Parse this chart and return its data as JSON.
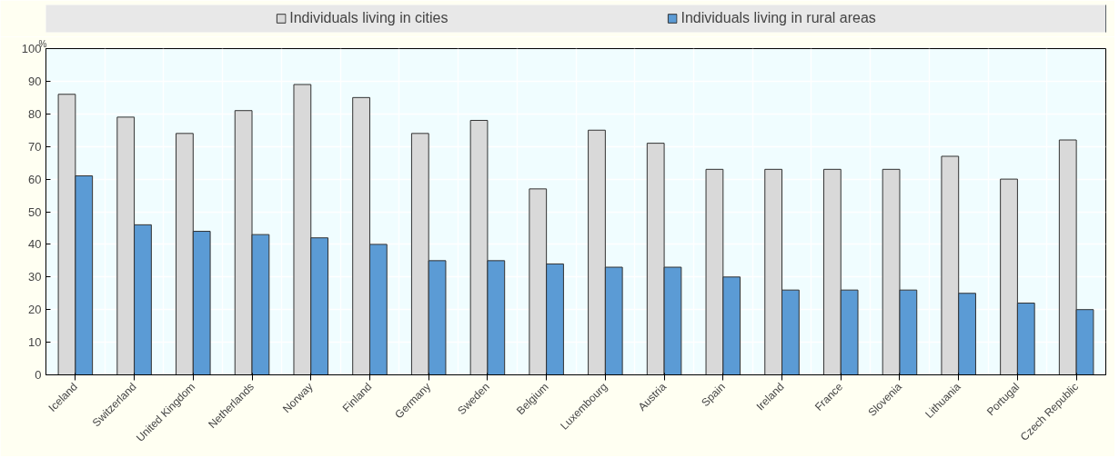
{
  "chart_data": {
    "type": "bar",
    "ylabel": "%",
    "categories": [
      "Iceland",
      "Switzerland",
      "United Kingdom",
      "Netherlands",
      "Norway",
      "Finland",
      "Germany",
      "Sweden",
      "Belgium",
      "Luxembourg",
      "Austria",
      "Spain",
      "Ireland",
      "France",
      "Slovenia",
      "Lithuania",
      "Portugal",
      "Czech Republic"
    ],
    "series": [
      {
        "name": "Individuals living in cities",
        "color": "#d9d9d9",
        "values": [
          86,
          79,
          74,
          81,
          89,
          85,
          74,
          78,
          57,
          75,
          71,
          63,
          63,
          63,
          63,
          67,
          60,
          72
        ]
      },
      {
        "name": "Individuals living in rural areas",
        "color": "#5b9bd5",
        "values": [
          61,
          46,
          44,
          43,
          42,
          40,
          35,
          35,
          34,
          33,
          33,
          30,
          26,
          26,
          26,
          25,
          22,
          20
        ]
      }
    ],
    "ylim": [
      0,
      100
    ],
    "yticks": [
      0,
      10,
      20,
      30,
      40,
      50,
      60,
      70,
      80,
      90,
      100
    ],
    "grid": true,
    "legend": "top"
  }
}
